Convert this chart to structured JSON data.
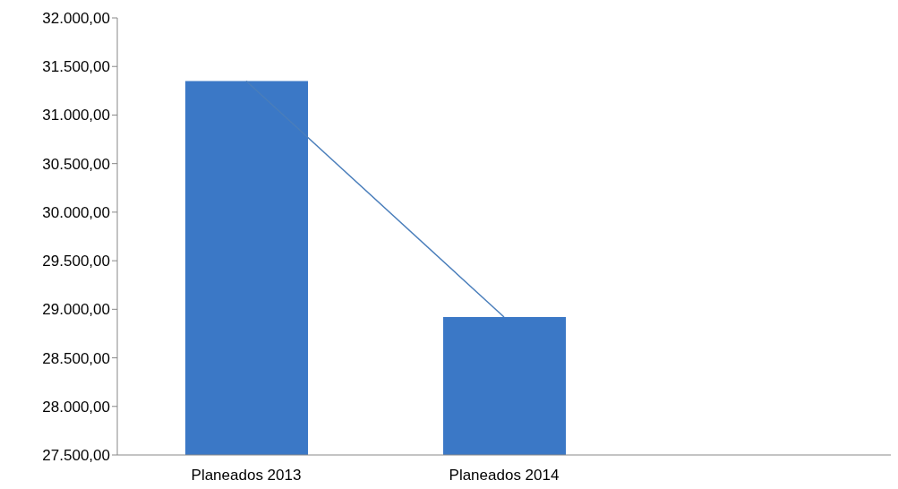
{
  "chart_data": {
    "type": "bar",
    "categories": [
      "Planeados 2013",
      "Planeados 2014",
      null
    ],
    "series": [
      {
        "color": "#3b78c6",
        "values": [
          31350,
          28920,
          null
        ]
      },
      {
        "type": "line",
        "color": "#4a7ebb",
        "values": [
          31350,
          28920,
          null
        ]
      }
    ],
    "ylim": [
      27500,
      32000
    ],
    "yticks": [
      {
        "value": 27500,
        "label": "27.500,00"
      },
      {
        "value": 28000,
        "label": "28.000,00"
      },
      {
        "value": 28500,
        "label": "28.500,00"
      },
      {
        "value": 29000,
        "label": "29.000,00"
      },
      {
        "value": 29500,
        "label": "29.500,00"
      },
      {
        "value": 30000,
        "label": "30.000,00"
      },
      {
        "value": 30500,
        "label": "30.500,00"
      },
      {
        "value": 31000,
        "label": "31.000,00"
      },
      {
        "value": 31500,
        "label": "31.500,00"
      },
      {
        "value": 32000,
        "label": "32.000,00"
      }
    ],
    "grid": false,
    "legend": false,
    "marker": "none",
    "line_style": "solid"
  }
}
